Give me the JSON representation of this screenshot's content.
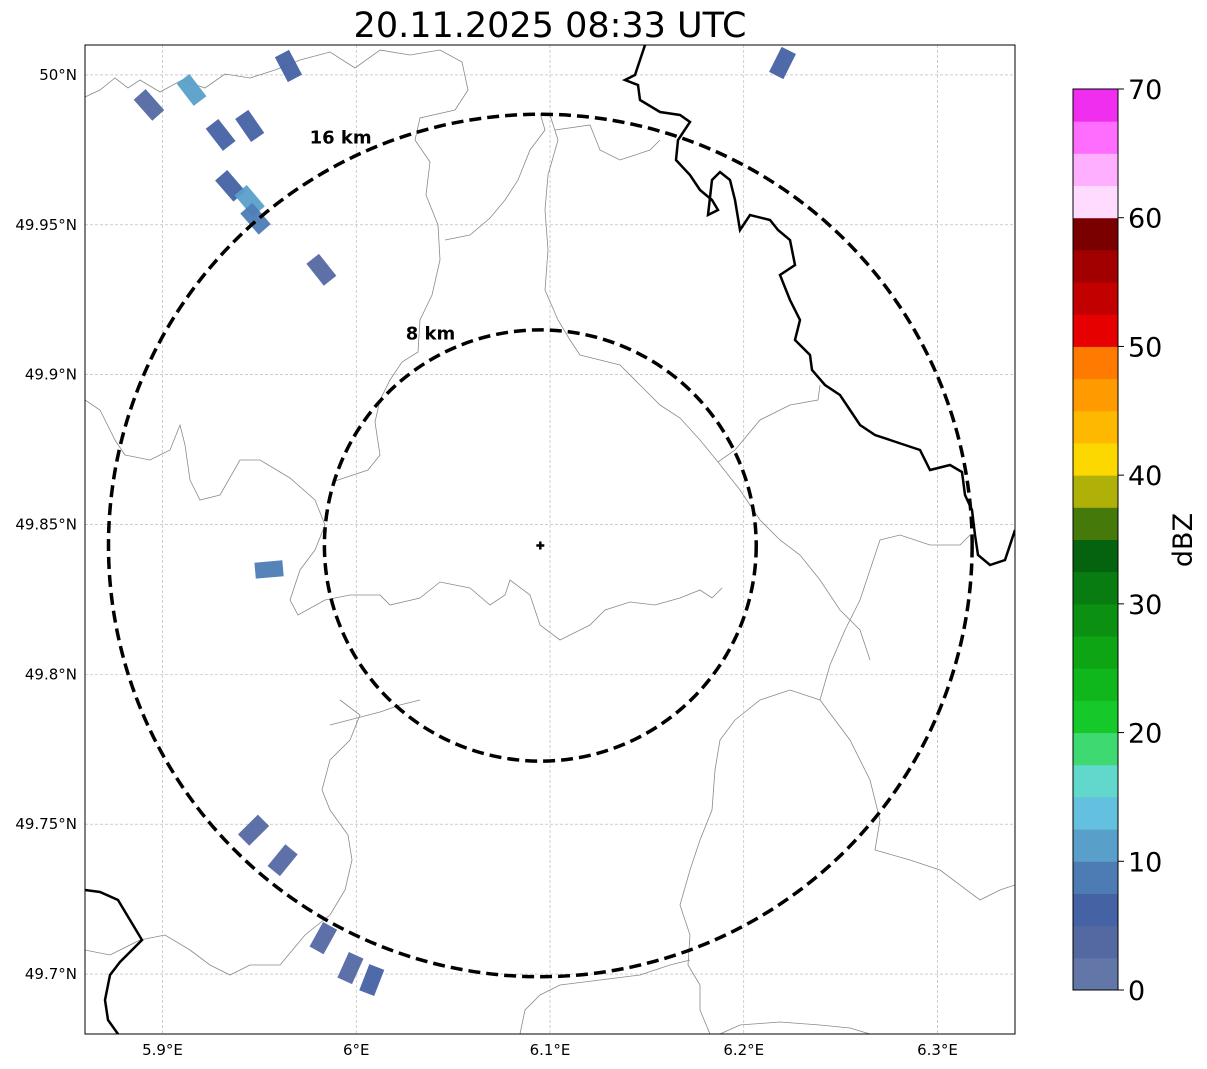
{
  "title": "20.11.2025 08:33 UTC",
  "map": {
    "x_ticks": [
      "5.9°E",
      "6°E",
      "6.1°E",
      "6.2°E",
      "6.3°E"
    ],
    "y_ticks": [
      "50°N",
      "49.95°N",
      "49.9°N",
      "49.85°N",
      "49.8°N",
      "49.75°N",
      "49.7°N"
    ],
    "lon_range": [
      5.86,
      6.34
    ],
    "lat_range": [
      49.68,
      50.01
    ],
    "radar_site": {
      "lon": 6.095,
      "lat": 49.843
    },
    "range_rings": [
      {
        "label": "8 km",
        "radius_km": 8
      },
      {
        "label": "16 km",
        "radius_km": 16
      }
    ],
    "gridlines": true,
    "echo_patches": [
      {
        "lon": 5.893,
        "lat": 49.99,
        "dbz": 3
      },
      {
        "lon": 5.915,
        "lat": 49.995,
        "dbz": 12
      },
      {
        "lon": 5.93,
        "lat": 49.98,
        "dbz": 5
      },
      {
        "lon": 5.945,
        "lat": 49.983,
        "dbz": 5
      },
      {
        "lon": 5.935,
        "lat": 49.963,
        "dbz": 6
      },
      {
        "lon": 5.945,
        "lat": 49.958,
        "dbz": 10
      },
      {
        "lon": 5.948,
        "lat": 49.952,
        "dbz": 8
      },
      {
        "lon": 5.982,
        "lat": 49.935,
        "dbz": 4
      },
      {
        "lon": 5.965,
        "lat": 50.003,
        "dbz": 6
      },
      {
        "lon": 6.22,
        "lat": 50.004,
        "dbz": 6
      },
      {
        "lon": 5.955,
        "lat": 49.835,
        "dbz": 8
      },
      {
        "lon": 5.947,
        "lat": 49.748,
        "dbz": 4
      },
      {
        "lon": 5.962,
        "lat": 49.738,
        "dbz": 4
      },
      {
        "lon": 5.983,
        "lat": 49.712,
        "dbz": 4
      },
      {
        "lon": 5.997,
        "lat": 49.702,
        "dbz": 4
      },
      {
        "lon": 6.008,
        "lat": 49.698,
        "dbz": 5
      }
    ]
  },
  "colorbar": {
    "label": "dBZ",
    "ticks": [
      "0",
      "10",
      "20",
      "30",
      "40",
      "50",
      "60",
      "70"
    ],
    "min": 0,
    "max": 70,
    "colors": [
      "#6376a8",
      "#5468a2",
      "#4562a4",
      "#4d7cb4",
      "#58a0ca",
      "#63c1df",
      "#62d8cc",
      "#3fd972",
      "#14c929",
      "#10b71c",
      "#0ea514",
      "#0c9012",
      "#087c10",
      "#05620e",
      "#457a0b",
      "#afb008",
      "#fdd800",
      "#ffb800",
      "#ff9a00",
      "#ff7a00",
      "#e60000",
      "#c30000",
      "#a20000",
      "#7a0000",
      "#ffdcff",
      "#ffafff",
      "#ff6dff",
      "#ef2eef"
    ]
  }
}
